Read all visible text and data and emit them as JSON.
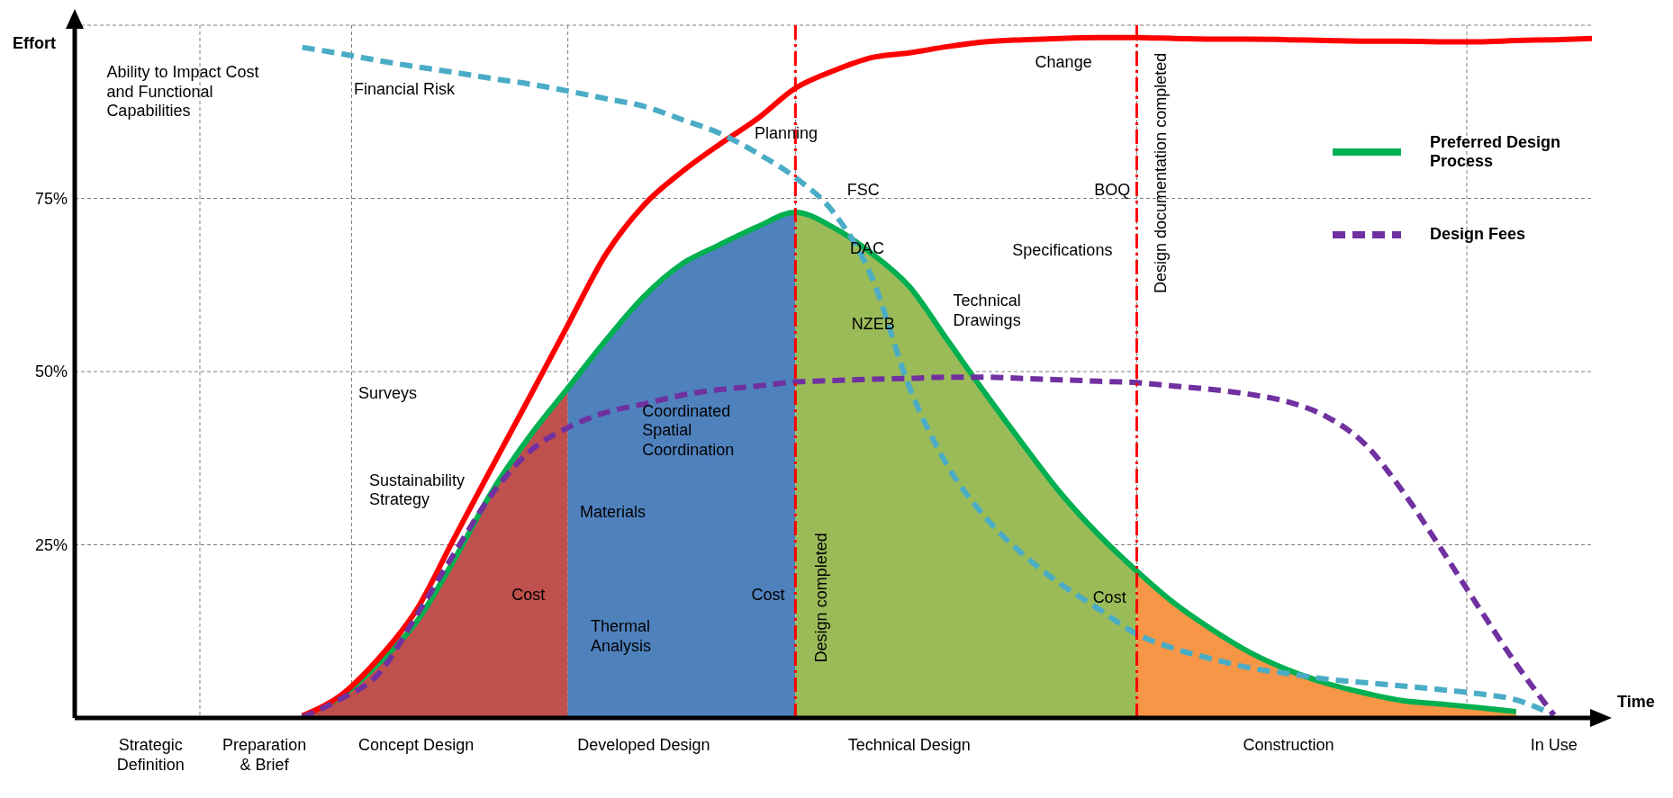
{
  "chart_data": {
    "type": "line",
    "xlabel": "Time",
    "ylabel": "Effort",
    "ylim": [
      0,
      100
    ],
    "categories": [
      null,
      null,
      "Strategic Definition",
      null,
      null,
      "Preparation & Brief",
      null,
      null,
      null,
      "Concept Design",
      null,
      null,
      null,
      null,
      null,
      "Developed Design",
      null,
      null,
      null,
      null,
      null,
      null,
      "Technical Design",
      null,
      null,
      null,
      null,
      null,
      null,
      null,
      null,
      null,
      "Construction",
      null,
      null,
      null,
      null,
      null,
      null,
      "In Use",
      null
    ],
    "yticks": [
      {
        "value": 25,
        "label": "25%"
      },
      {
        "value": 50,
        "label": "50%"
      },
      {
        "value": 75,
        "label": "75%"
      }
    ],
    "grid": true,
    "legend": "top right",
    "series": [
      {
        "type": "area",
        "color": "#c0504d",
        "values": [
          null,
          null,
          null,
          null,
          null,
          null,
          0.3,
          3.0,
          7.8,
          13.8,
          22.8,
          32.7,
          40.7,
          47.6,
          null,
          null,
          null,
          null,
          null,
          null,
          null,
          null,
          null,
          null,
          null,
          null,
          null,
          null,
          null,
          null,
          null,
          null,
          null,
          null,
          null,
          null,
          null,
          null,
          null,
          null,
          null
        ]
      },
      {
        "type": "area",
        "color": "#4f81bd",
        "values": [
          null,
          null,
          null,
          null,
          null,
          null,
          null,
          null,
          null,
          null,
          null,
          null,
          null,
          47.6,
          54.5,
          60.8,
          65.5,
          68.3,
          70.9,
          73.0,
          null,
          null,
          null,
          null,
          null,
          null,
          null,
          null,
          null,
          null,
          null,
          null,
          null,
          null,
          null,
          null,
          null,
          null,
          null,
          null,
          null
        ]
      },
      {
        "type": "area",
        "color": "#9bbb59",
        "values": [
          null,
          null,
          null,
          null,
          null,
          null,
          null,
          null,
          null,
          null,
          null,
          null,
          null,
          null,
          null,
          null,
          null,
          null,
          null,
          73.0,
          70.8,
          67.1,
          62.3,
          54.6,
          46.9,
          39.5,
          32.4,
          26.4,
          21.2,
          null,
          null,
          null,
          null,
          null,
          null,
          null,
          null,
          null,
          null,
          null,
          null
        ]
      },
      {
        "type": "area",
        "color": "#f79646",
        "values": [
          null,
          null,
          null,
          null,
          null,
          null,
          null,
          null,
          null,
          null,
          null,
          null,
          null,
          null,
          null,
          null,
          null,
          null,
          null,
          null,
          null,
          null,
          null,
          null,
          null,
          null,
          null,
          null,
          21.2,
          16.5,
          12.7,
          9.4,
          6.9,
          5.0,
          3.6,
          2.5,
          2.0,
          1.5,
          0.9,
          null,
          null
        ]
      },
      {
        "name": "Preferred Design Process",
        "color": "#00b050",
        "line_style": "solid",
        "values": [
          null,
          null,
          null,
          null,
          null,
          null,
          0.3,
          3.0,
          7.8,
          13.8,
          22.8,
          32.7,
          40.7,
          47.6,
          54.5,
          60.8,
          65.5,
          68.3,
          70.9,
          73.0,
          70.8,
          67.1,
          62.3,
          54.6,
          46.9,
          39.5,
          32.4,
          26.4,
          21.2,
          16.5,
          12.7,
          9.4,
          6.9,
          5.0,
          3.6,
          2.5,
          2.0,
          1.5,
          0.9,
          null,
          null
        ]
      },
      {
        "color": "#ff0000",
        "line_style": "solid",
        "values": [
          null,
          null,
          null,
          null,
          null,
          null,
          0.3,
          3.2,
          8.5,
          15.5,
          25.9,
          36.2,
          46.4,
          56.7,
          66.9,
          74.0,
          78.8,
          82.8,
          86.5,
          90.9,
          93.4,
          95.3,
          96.0,
          96.9,
          97.6,
          97.9,
          98.1,
          98.2,
          98.2,
          98.1,
          98.0,
          98.0,
          97.9,
          97.8,
          97.7,
          97.7,
          97.6,
          97.6,
          97.8,
          97.9,
          98.1
        ]
      },
      {
        "color": "#4bacc6",
        "line_style": "dashed",
        "values": [
          null,
          null,
          null,
          null,
          null,
          null,
          96.8,
          95.9,
          94.9,
          94.0,
          93.2,
          92.3,
          91.5,
          90.5,
          89.4,
          88.3,
          86.4,
          84.4,
          81.5,
          78.0,
          73.0,
          63.8,
          47.8,
          36.5,
          29.0,
          23.6,
          19.3,
          15.7,
          12.1,
          10.0,
          8.5,
          7.2,
          6.4,
          5.6,
          5.1,
          4.6,
          4.1,
          3.5,
          2.6,
          0.4,
          null
        ]
      },
      {
        "name": "Design Fees",
        "color": "#7030a0",
        "line_style": "dashed",
        "values": [
          null,
          null,
          null,
          null,
          null,
          null,
          0.1,
          2.7,
          6.3,
          14.7,
          23.7,
          32.3,
          38.5,
          41.9,
          44.1,
          45.3,
          46.6,
          47.4,
          47.9,
          48.5,
          48.7,
          48.9,
          49.0,
          49.2,
          49.2,
          49.0,
          48.8,
          48.6,
          48.4,
          47.9,
          47.4,
          46.7,
          45.6,
          43.5,
          39.6,
          32.8,
          24.6,
          16.1,
          7.8,
          0.4,
          null
        ]
      }
    ],
    "annotations": [
      "Ability to Impact Cost\nand Functional\nCapabilities",
      "Financial Risk",
      "Change",
      "Planning",
      "FSC",
      "BOQ",
      "DAC",
      "Specifications",
      "Technical\nDrawings",
      "NZEB",
      "Surveys",
      "Coordinated\nSpatial\nCoordination",
      "Sustainability\nStrategy",
      "Materials",
      "Cost",
      "Cost",
      "Cost",
      "Thermal\nAnalysis",
      "Design completed",
      "Design documentation completed"
    ]
  }
}
